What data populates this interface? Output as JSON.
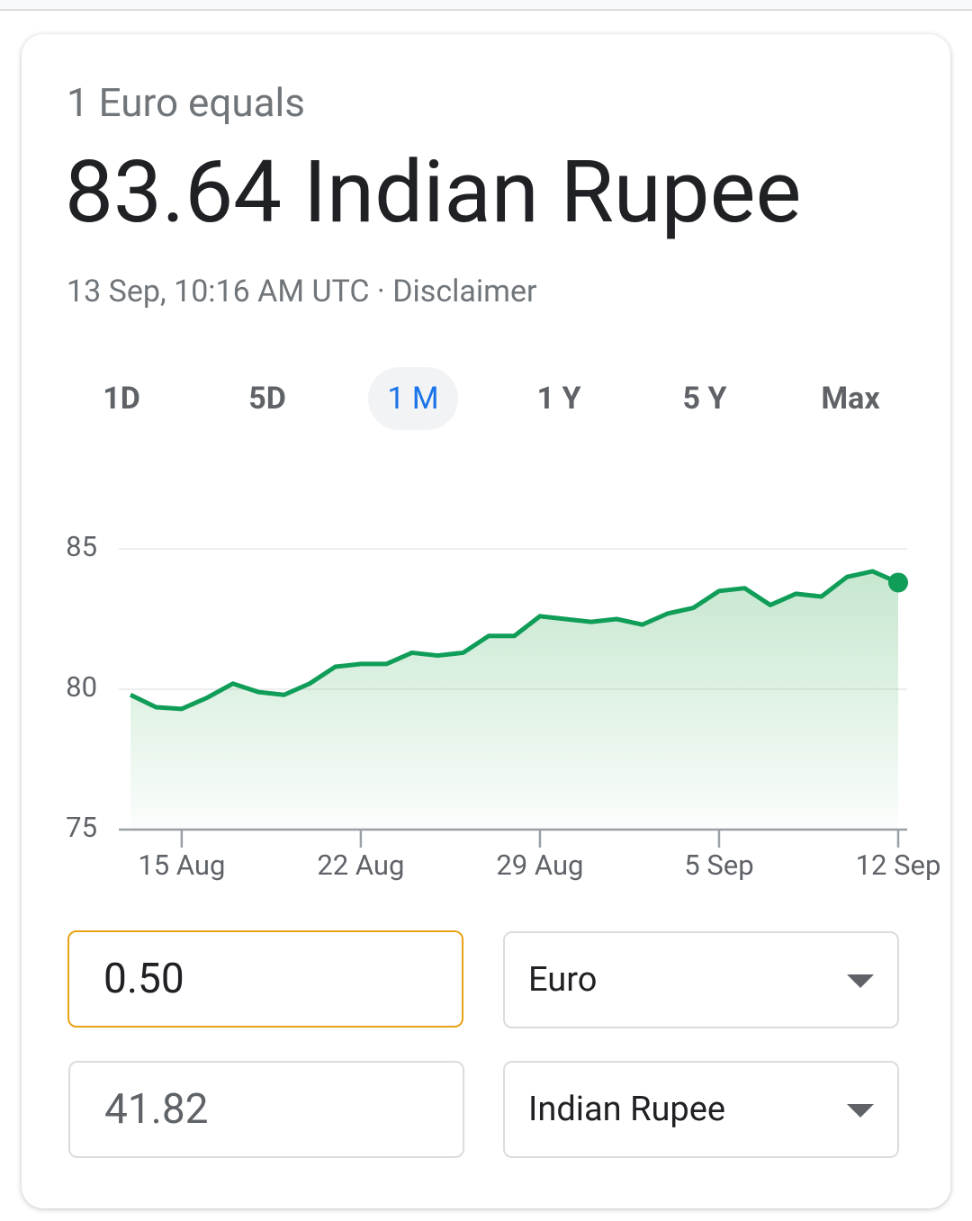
{
  "header": {
    "subtitle": "1 Euro equals",
    "rate": "83.64 Indian Rupee",
    "timestamp": "13 Sep, 10:16 AM UTC · Disclaimer"
  },
  "tabs": {
    "items": [
      "1D",
      "5D",
      "1 M",
      "1 Y",
      "5 Y",
      "Max"
    ],
    "selected": 2
  },
  "chart_data": {
    "type": "line",
    "color": "#0f9d58",
    "x": [
      "13 Aug",
      "14 Aug",
      "15 Aug",
      "16 Aug",
      "17 Aug",
      "18 Aug",
      "19 Aug",
      "20 Aug",
      "21 Aug",
      "22 Aug",
      "23 Aug",
      "24 Aug",
      "25 Aug",
      "26 Aug",
      "27 Aug",
      "28 Aug",
      "29 Aug",
      "30 Aug",
      "31 Aug",
      "1 Sep",
      "2 Sep",
      "3 Sep",
      "4 Sep",
      "5 Sep",
      "6 Sep",
      "7 Sep",
      "8 Sep",
      "9 Sep",
      "10 Sep",
      "11 Sep",
      "12 Sep"
    ],
    "values": [
      79.8,
      79.36,
      79.3,
      79.7,
      80.2,
      79.9,
      79.8,
      80.2,
      80.8,
      80.9,
      80.9,
      81.3,
      81.2,
      81.3,
      81.9,
      81.9,
      82.6,
      82.5,
      82.4,
      82.5,
      82.3,
      82.7,
      82.9,
      83.5,
      83.6,
      83.0,
      83.4,
      83.3,
      84.0,
      84.2,
      83.8
    ],
    "xticks": [
      "15 Aug",
      "22 Aug",
      "29 Aug",
      "5 Sep",
      "12 Sep"
    ],
    "ylim": [
      75,
      85
    ],
    "yticks": [
      75,
      80,
      85
    ],
    "grid": true
  },
  "converter": {
    "from_amount": "0.50",
    "from_currency": "Euro",
    "to_amount": "41.82",
    "to_currency": "Indian Rupee"
  }
}
